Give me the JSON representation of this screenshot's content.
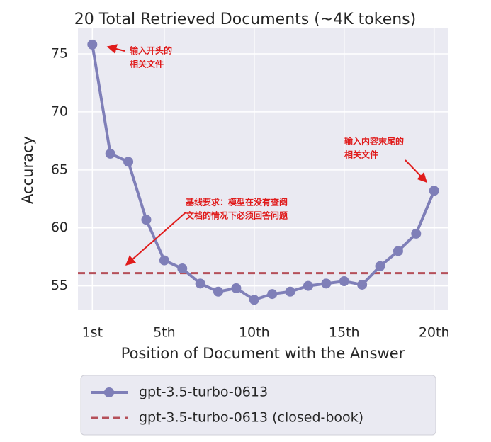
{
  "chart_data": {
    "type": "line",
    "title": "20 Total Retrieved Documents (~4K tokens)",
    "x_label": "Position of Document with the Answer",
    "y_label": "Accuracy",
    "x": [
      1,
      2,
      3,
      4,
      5,
      6,
      7,
      8,
      9,
      10,
      11,
      12,
      13,
      14,
      15,
      16,
      17,
      18,
      19,
      20
    ],
    "series": [
      {
        "name": "gpt-3.5-turbo-0613",
        "color": "#7f7fb8",
        "values": [
          75.8,
          66.4,
          65.7,
          60.7,
          57.2,
          56.5,
          55.2,
          54.5,
          54.8,
          53.8,
          54.3,
          54.5,
          55.0,
          55.2,
          55.4,
          55.1,
          56.7,
          58.0,
          59.5,
          63.2
        ]
      }
    ],
    "reference_lines": [
      {
        "name": "gpt-3.5-turbo-0613 (closed-book)",
        "color": "#b5505a",
        "value": 56.1
      }
    ],
    "xlim": [
      0.2,
      20.8
    ],
    "ylim": [
      52.9,
      77.2
    ],
    "xticks": [
      {
        "value": 1,
        "label": "1st"
      },
      {
        "value": 5,
        "label": "5th"
      },
      {
        "value": 10,
        "label": "10th"
      },
      {
        "value": 15,
        "label": "15th"
      },
      {
        "value": 20,
        "label": "20th"
      }
    ],
    "yticks": [
      55,
      60,
      65,
      70,
      75
    ],
    "grid": true,
    "annotations": [
      {
        "lines": [
          "输入开头的",
          "相关文件"
        ]
      },
      {
        "lines": [
          "输入内容末尾的",
          "相关文件"
        ]
      },
      {
        "lines": [
          "基线要求：模型在没有查阅",
          "文档的情况下必须回答问题"
        ]
      }
    ]
  }
}
